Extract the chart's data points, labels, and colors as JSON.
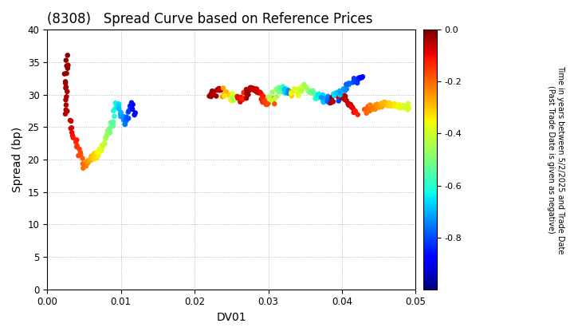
{
  "title": "(8308)   Spread Curve based on Reference Prices",
  "xlabel": "DV01",
  "ylabel": "Spread (bp)",
  "xlim": [
    0.0,
    0.05
  ],
  "ylim": [
    0,
    40
  ],
  "xticks": [
    0.0,
    0.01,
    0.02,
    0.03,
    0.04,
    0.05
  ],
  "yticks": [
    0,
    5,
    10,
    15,
    20,
    25,
    30,
    35,
    40
  ],
  "colorbar_label_line1": "Time in years between 5/2/2025 and Trade Date",
  "colorbar_label_line2": "(Past Trade Date is given as negative)",
  "cbar_ticks": [
    0.0,
    -0.2,
    -0.4,
    -0.6,
    -0.8
  ],
  "cmap": "jet",
  "vmin": -1.0,
  "vmax": 0.0,
  "marker_size": 22,
  "background_color": "#ffffff",
  "grid_color": "#888888",
  "title_fontsize": 12,
  "axis_fontsize": 10
}
